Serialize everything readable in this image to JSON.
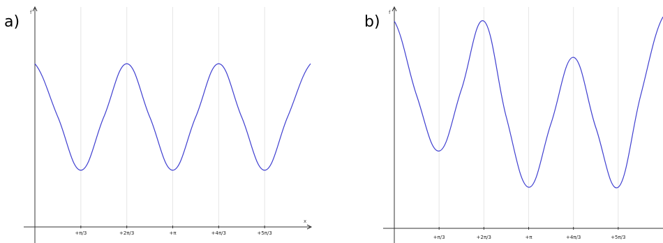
{
  "chart_data": [
    {
      "type": "line",
      "panel_label": "a)",
      "xlabel": "x",
      "ylabel": "f",
      "grid": true,
      "ticks": [
        {
          "x": 1.0472,
          "label": "+π/3"
        },
        {
          "x": 2.0944,
          "label": "+2π/3"
        },
        {
          "x": 3.1416,
          "label": "+π"
        },
        {
          "x": 4.1888,
          "label": "+4π/3"
        },
        {
          "x": 5.236,
          "label": "+5π/3"
        }
      ],
      "xlim": [
        0,
        6.2832
      ],
      "ylim": [
        0,
        1
      ],
      "series": [
        {
          "color": "#3f3fd0",
          "x": [
            0,
            0.5236,
            1.0472,
            1.5708,
            2.0944,
            2.618,
            3.1416,
            3.6652,
            4.1888,
            4.7124,
            5.236,
            5.7596,
            6.2832
          ],
          "y": [
            0.75,
            0.5,
            0.25,
            0.5,
            0.75,
            0.5,
            0.25,
            0.5,
            0.75,
            0.5,
            0.25,
            0.5,
            0.75
          ]
        }
      ]
    },
    {
      "type": "line",
      "panel_label": "b)",
      "xlabel": "",
      "ylabel": "f",
      "grid": true,
      "ticks": [
        {
          "x": 1.0472,
          "label": "+π/3"
        },
        {
          "x": 2.0944,
          "label": "+2π/3"
        },
        {
          "x": 3.1416,
          "label": "+π"
        },
        {
          "x": 4.1888,
          "label": "+4π/3"
        },
        {
          "x": 5.236,
          "label": "+5π/3"
        }
      ],
      "xlim": [
        0,
        6.2832
      ],
      "ylim": [
        0,
        1
      ],
      "series": [
        {
          "color": "#3f3fd0",
          "x": [
            0,
            0.5236,
            1.0472,
            1.5708,
            2.0944,
            2.618,
            3.1416,
            3.6652,
            4.1888,
            4.7124,
            5.236,
            5.7596,
            6.2832
          ],
          "y": [
            0.95,
            0.6,
            0.34,
            0.63,
            0.95,
            0.5,
            0.17,
            0.47,
            0.78,
            0.45,
            0.17,
            0.6,
            0.97
          ]
        }
      ]
    }
  ]
}
